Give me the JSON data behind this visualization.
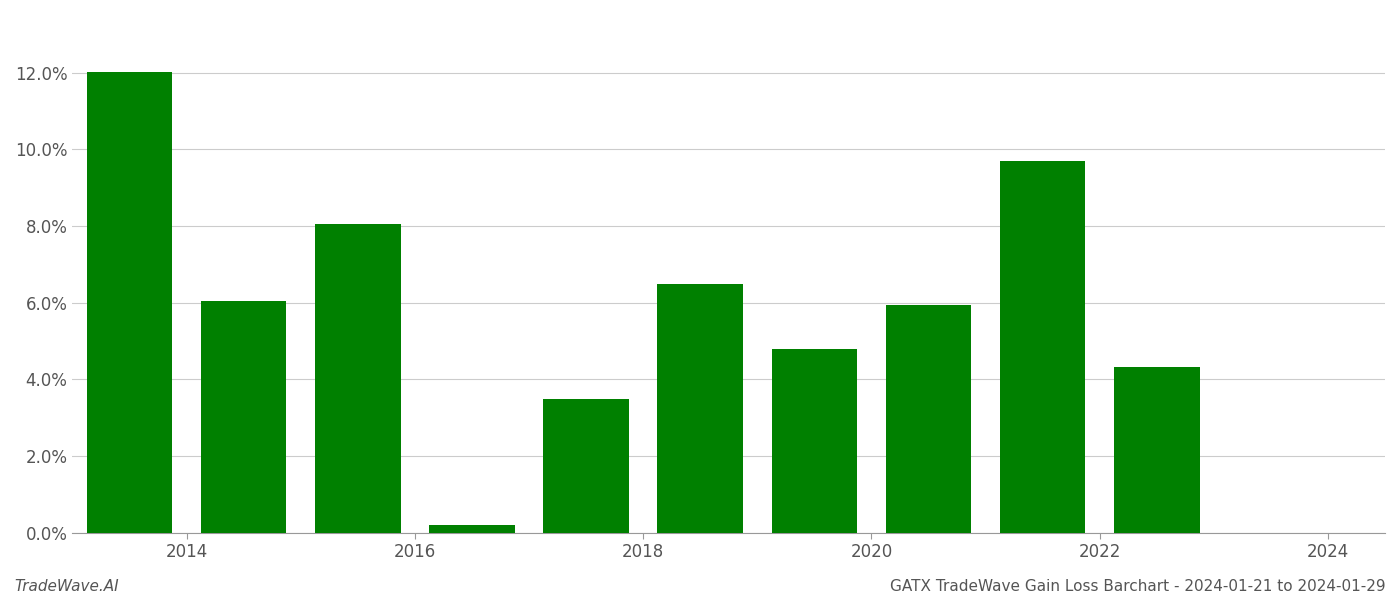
{
  "years": [
    2013,
    2014,
    2015,
    2016,
    2017,
    2018,
    2019,
    2020,
    2021,
    2022,
    2023
  ],
  "values": [
    0.1201,
    0.0605,
    0.0805,
    0.002,
    0.0348,
    0.0648,
    0.0479,
    0.0593,
    0.0968,
    0.0433,
    0.0
  ],
  "bar_positions": [
    2013.5,
    2014.5,
    2015.5,
    2016.5,
    2017.5,
    2018.5,
    2019.5,
    2020.5,
    2021.5,
    2022.5,
    2023.5
  ],
  "bar_color": "#008000",
  "title": "GATX TradeWave Gain Loss Barchart - 2024-01-21 to 2024-01-29",
  "footer_left": "TradeWave.AI",
  "footer_right": "GATX TradeWave Gain Loss Barchart - 2024-01-21 to 2024-01-29",
  "ylim": [
    0,
    0.135
  ],
  "ytick_step": 0.02,
  "xticks": [
    2014,
    2016,
    2018,
    2020,
    2022,
    2024
  ],
  "xlim": [
    2013.0,
    2024.5
  ],
  "background_color": "#ffffff",
  "grid_color": "#cccccc",
  "axis_color": "#999999",
  "tick_label_color": "#555555",
  "footer_font_size": 11,
  "bar_width": 0.75
}
